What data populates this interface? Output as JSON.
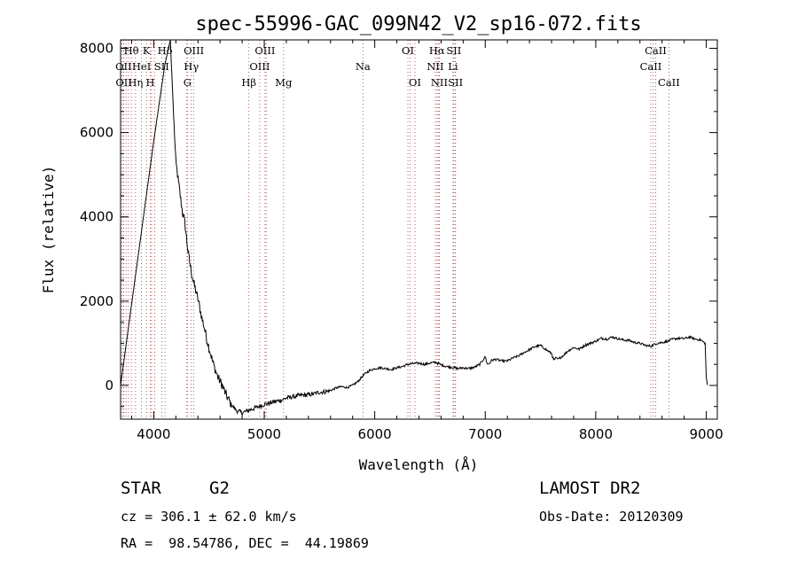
{
  "chart_data": {
    "type": "line",
    "title": "spec-55996-GAC_099N42_V2_sp16-072.fits",
    "xlabel": "Wavelength (Å)",
    "ylabel": "Flux (relative)",
    "xlim": [
      3700,
      9100
    ],
    "ylim": [
      -800,
      8200
    ],
    "xticks": [
      4000,
      5000,
      6000,
      7000,
      8000,
      9000
    ],
    "yticks": [
      0,
      2000,
      4000,
      6000,
      8000
    ],
    "tick_labels_x": [
      "4000",
      "5000",
      "6000",
      "7000",
      "8000",
      "9000"
    ],
    "tick_labels_y": [
      "0",
      "2000",
      "4000",
      "6000",
      "8000"
    ],
    "grid": false,
    "series": [
      {
        "x": [
          3700,
          3850,
          4000,
          4100,
          4150,
          4180,
          4200,
          4230,
          4260,
          4280,
          4300,
          4320,
          4340,
          4360,
          4380,
          4400,
          4420,
          4440,
          4460,
          4480,
          4500,
          4520,
          4540,
          4560,
          4580,
          4600,
          4620,
          4650,
          4700,
          4750,
          4800,
          4850,
          4900,
          4950,
          5000,
          5050,
          5100,
          5150,
          5200,
          5250,
          5300,
          5350,
          5400,
          5450,
          5500,
          5550,
          5600,
          5650,
          5700,
          5750,
          5800,
          5850,
          5900,
          5950,
          6000,
          6050,
          6100,
          6150,
          6200,
          6250,
          6300,
          6350,
          6400,
          6450,
          6500,
          6550,
          6600,
          6650,
          6700,
          6750,
          6800,
          6850,
          6900,
          6950,
          7000,
          7020,
          7040,
          7060,
          7100,
          7150,
          7200,
          7250,
          7300,
          7350,
          7400,
          7450,
          7500,
          7550,
          7600,
          7620,
          7640,
          7660,
          7700,
          7750,
          7800,
          7850,
          7900,
          7950,
          8000,
          8050,
          8100,
          8150,
          8200,
          8250,
          8300,
          8350,
          8400,
          8450,
          8500,
          8550,
          8600,
          8650,
          8700,
          8750,
          8800,
          8850,
          8900,
          8950,
          8990,
          9000,
          9010
        ],
        "y": [
          0,
          2900,
          5800,
          7600,
          8200,
          6400,
          5300,
          4700,
          4100,
          3900,
          3400,
          3000,
          2700,
          2450,
          2250,
          2050,
          1800,
          1550,
          1350,
          1100,
          900,
          700,
          500,
          350,
          200,
          100,
          0,
          -200,
          -450,
          -600,
          -650,
          -600,
          -550,
          -500,
          -450,
          -420,
          -380,
          -350,
          -300,
          -270,
          -250,
          -230,
          -220,
          -200,
          -160,
          -150,
          -120,
          -60,
          -30,
          -50,
          0,
          100,
          250,
          350,
          400,
          420,
          400,
          380,
          420,
          450,
          500,
          520,
          530,
          500,
          530,
          550,
          490,
          450,
          430,
          400,
          420,
          400,
          430,
          500,
          680,
          500,
          530,
          600,
          620,
          580,
          580,
          650,
          700,
          780,
          850,
          920,
          950,
          850,
          760,
          600,
          650,
          620,
          700,
          820,
          900,
          860,
          950,
          1000,
          1050,
          1120,
          1100,
          1150,
          1110,
          1080,
          1070,
          1020,
          1000,
          950,
          930,
          1000,
          1020,
          1050,
          1100,
          1120,
          1110,
          1150,
          1100,
          1080,
          1000,
          200,
          10
        ]
      }
    ],
    "spectral_lines": [
      {
        "label": "Hθ",
        "wl": 3797,
        "row": 0
      },
      {
        "label": "K",
        "wl": 3934,
        "row": 0
      },
      {
        "label": "Hδ",
        "wl": 4102,
        "row": 0
      },
      {
        "label": "OIII",
        "wl": 4363,
        "row": 0
      },
      {
        "label": "OIII",
        "wl": 5007,
        "row": 0
      },
      {
        "label": "OI",
        "wl": 6300,
        "row": 0
      },
      {
        "label": "Hα",
        "wl": 6563,
        "row": 0
      },
      {
        "label": "SII",
        "wl": 6716,
        "row": 0
      },
      {
        "label": "CaII",
        "wl": 8542,
        "row": 0
      },
      {
        "label": "OII",
        "wl": 3727,
        "row": 1
      },
      {
        "label": "HeI",
        "wl": 3889,
        "row": 1
      },
      {
        "label": "SII",
        "wl": 4072,
        "row": 1
      },
      {
        "label": "Hγ",
        "wl": 4340,
        "row": 1
      },
      {
        "label": "OIII",
        "wl": 4959,
        "row": 1
      },
      {
        "label": "Na",
        "wl": 5893,
        "row": 1
      },
      {
        "label": "NII",
        "wl": 6548,
        "row": 1
      },
      {
        "label": "Li",
        "wl": 6708,
        "row": 1
      },
      {
        "label": "CaII",
        "wl": 8498,
        "row": 1
      },
      {
        "label": "OII",
        "wl": 3729,
        "row": 2
      },
      {
        "label": "Hη",
        "wl": 3835,
        "row": 2
      },
      {
        "label": "H",
        "wl": 3969,
        "row": 2
      },
      {
        "label": "G",
        "wl": 4305,
        "row": 2
      },
      {
        "label": "Hβ",
        "wl": 4861,
        "row": 2
      },
      {
        "label": "Mg",
        "wl": 5175,
        "row": 2
      },
      {
        "label": "OI",
        "wl": 6364,
        "row": 2
      },
      {
        "label": "NII",
        "wl": 6584,
        "row": 2
      },
      {
        "label": "SII",
        "wl": 6731,
        "row": 2
      },
      {
        "label": "CaII",
        "wl": 8662,
        "row": 2
      }
    ],
    "extra_line_markers": [
      3712,
      3771,
      3750,
      3980,
      4010,
      4300,
      5018,
      6320,
      6575,
      6730,
      8520
    ]
  },
  "info": {
    "object_class": "STAR",
    "subclass": "G2",
    "survey": "LAMOST DR2",
    "cz": "cz = 306.1 ± 62.0 km/s",
    "obs_date": "Obs-Date: 20120309",
    "radec": "RA =  98.54786, DEC =  44.19869"
  }
}
